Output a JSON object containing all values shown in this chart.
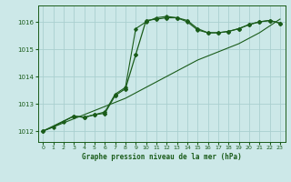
{
  "title": "Graphe pression niveau de la mer (hPa)",
  "bg_color": "#cce8e8",
  "grid_color": "#aacfcf",
  "line_color": "#1a5c1a",
  "xlim": [
    -0.5,
    23.5
  ],
  "ylim": [
    1011.6,
    1016.6
  ],
  "yticks": [
    1012,
    1013,
    1014,
    1015,
    1016
  ],
  "xticks": [
    0,
    1,
    2,
    3,
    4,
    5,
    6,
    7,
    8,
    9,
    10,
    11,
    12,
    13,
    14,
    15,
    16,
    17,
    18,
    19,
    20,
    21,
    22,
    23
  ],
  "series1_x": [
    0,
    1,
    2,
    3,
    4,
    5,
    6,
    7,
    8,
    9,
    10,
    11,
    12,
    13,
    14,
    15,
    16,
    17,
    18,
    19,
    20,
    21,
    22,
    23
  ],
  "series1_y": [
    1012.0,
    1012.15,
    1012.3,
    1012.45,
    1012.6,
    1012.75,
    1012.9,
    1013.05,
    1013.2,
    1013.4,
    1013.6,
    1013.8,
    1014.0,
    1014.2,
    1014.4,
    1014.6,
    1014.75,
    1014.9,
    1015.05,
    1015.2,
    1015.4,
    1015.6,
    1015.85,
    1016.1
  ],
  "series2_x": [
    0,
    3,
    4,
    5,
    6,
    7,
    8,
    9,
    10,
    11,
    12,
    13,
    14,
    15,
    16,
    17,
    18,
    19,
    20,
    21,
    22,
    23
  ],
  "series2_y": [
    1012.0,
    1012.55,
    1012.5,
    1012.6,
    1012.65,
    1013.3,
    1013.55,
    1014.8,
    1016.05,
    1016.1,
    1016.15,
    1016.15,
    1016.05,
    1015.75,
    1015.6,
    1015.6,
    1015.65,
    1015.75,
    1015.9,
    1016.0,
    1016.05,
    1015.95
  ],
  "series3_x": [
    0,
    1,
    2,
    3,
    4,
    5,
    6,
    7,
    8,
    9,
    10,
    11,
    12,
    13,
    14,
    15,
    16,
    17,
    18,
    19,
    20,
    21,
    22,
    23
  ],
  "series3_y": [
    1012.0,
    1012.15,
    1012.35,
    1012.55,
    1012.5,
    1012.6,
    1012.7,
    1013.35,
    1013.6,
    1015.75,
    1016.0,
    1016.15,
    1016.2,
    1016.15,
    1016.0,
    1015.7,
    1015.6,
    1015.6,
    1015.65,
    1015.75,
    1015.9,
    1016.0,
    1016.05,
    1015.95
  ]
}
